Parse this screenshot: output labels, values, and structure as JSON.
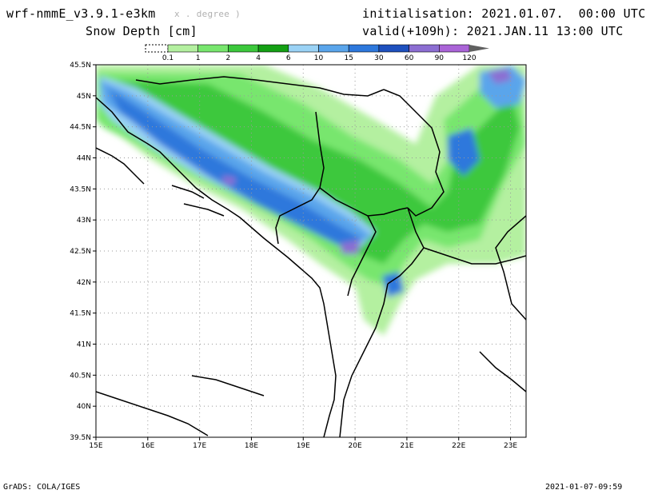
{
  "header": {
    "model": "wrf-nmmE_v3.9.1-e3km",
    "model_sub": "x . degree )",
    "field": "Snow Depth [cm]",
    "init": "initialisation: 2021.01.07.  00:00 UTC",
    "valid": "valid(+109h): 2021.JAN.11 13:00 UTC"
  },
  "legend": {
    "colors": [
      "#b4f0a0",
      "#78e66e",
      "#3cc83c",
      "#14a014",
      "#9ad2f5",
      "#5aa5eb",
      "#2d78dc",
      "#1e50be",
      "#8c6ed2",
      "#aa64d7"
    ],
    "labels": [
      "0.1",
      "1",
      "2",
      "4",
      "6",
      "10",
      "15",
      "30",
      "60",
      "90",
      "120"
    ],
    "cap_color": "#606060"
  },
  "map": {
    "lat_labels": [
      "45.5N",
      "45N",
      "44.5N",
      "44N",
      "43.5N",
      "43N",
      "42.5N",
      "42N",
      "41.5N",
      "41N",
      "40.5N",
      "40N",
      "39.5N"
    ],
    "lon_labels": [
      "15E",
      "16E",
      "17E",
      "18E",
      "19E",
      "20E",
      "21E",
      "22E",
      "23E"
    ],
    "lon_range": [
      15,
      23.3
    ],
    "lat_range": [
      39.5,
      45.5
    ],
    "grid": "dotted"
  },
  "footer": {
    "credit": "GrADS: COLA/IGES",
    "stamp": "2021-01-07-09:59"
  }
}
